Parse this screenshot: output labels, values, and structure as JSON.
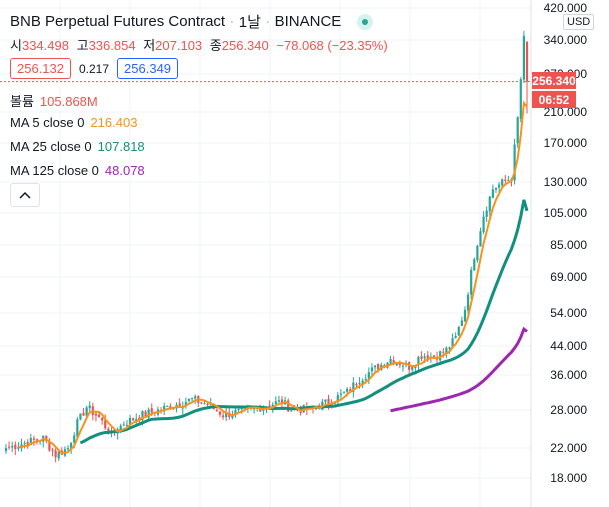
{
  "header": {
    "symbol_name": "BNB Perpetual Futures Contract",
    "interval": "1날",
    "exchange": "BINANCE"
  },
  "ohlc": {
    "open_label": "시",
    "open": "334.498",
    "high_label": "고",
    "high": "336.854",
    "low_label": "저",
    "low": "207.103",
    "close_label": "종",
    "close": "256.340",
    "change": "−78.068 (−23.35%)"
  },
  "quote": {
    "sell": "256.132",
    "spread": "0.217",
    "buy": "256.349"
  },
  "indicators": [
    {
      "label": "볼륨",
      "value": "105.868M",
      "color": "#ef5350"
    },
    {
      "label": "MA 5 close 0",
      "value": "216.403",
      "color": "#f7931a"
    },
    {
      "label": "MA 25 close 0",
      "value": "107.818",
      "color": "#138f7e"
    },
    {
      "label": "MA 125 close 0",
      "value": "48.078",
      "color": "#9c27b0"
    }
  ],
  "price_axis": {
    "currency": "USD",
    "ticks": [
      "420.000",
      "340.000",
      "270.000",
      "210.000",
      "170.000",
      "130.000",
      "105.000",
      "85.000",
      "69.000",
      "54.000",
      "44.000",
      "36.000",
      "28.000",
      "22.000",
      "18.000"
    ]
  },
  "last_price_tag": {
    "price": "256.340",
    "countdown": "06:52"
  },
  "colors": {
    "up": "#26a69a",
    "down": "#ef5350",
    "ma5": "#f7931a",
    "ma25": "#138f7e",
    "ma125": "#9c27b0"
  },
  "chart_data": {
    "type": "candlestick",
    "scale": "log",
    "ylim": [
      16,
      420
    ],
    "series": [
      {
        "name": "MA 5 close 0",
        "last": 216.403
      },
      {
        "name": "MA 25 close 0",
        "last": 107.818
      },
      {
        "name": "MA 125 close 0",
        "last": 48.078
      }
    ],
    "close_keyframes": [
      [
        0,
        22
      ],
      [
        8,
        23
      ],
      [
        12,
        23.5
      ],
      [
        16,
        21
      ],
      [
        20,
        22
      ],
      [
        23,
        26
      ],
      [
        26,
        29
      ],
      [
        30,
        27
      ],
      [
        34,
        24
      ],
      [
        38,
        26
      ],
      [
        44,
        27.5
      ],
      [
        50,
        28.5
      ],
      [
        55,
        29.5
      ],
      [
        60,
        30.5
      ],
      [
        65,
        29.5
      ],
      [
        70,
        27.5
      ],
      [
        75,
        28
      ],
      [
        80,
        28.5
      ],
      [
        85,
        29.5
      ],
      [
        89,
        30
      ],
      [
        92,
        28.5
      ],
      [
        98,
        28.5
      ],
      [
        104,
        30
      ],
      [
        110,
        32
      ],
      [
        114,
        35
      ],
      [
        118,
        37
      ],
      [
        124,
        40
      ],
      [
        130,
        38
      ],
      [
        134,
        41
      ],
      [
        138,
        40.5
      ],
      [
        142,
        42.5
      ],
      [
        145,
        46
      ],
      [
        148,
        56
      ],
      [
        151,
        80
      ],
      [
        154,
        105
      ],
      [
        157,
        125
      ],
      [
        160,
        130
      ],
      [
        163,
        135
      ],
      [
        165,
        200
      ],
      [
        167,
        340
      ],
      [
        168,
        256.34
      ]
    ]
  }
}
